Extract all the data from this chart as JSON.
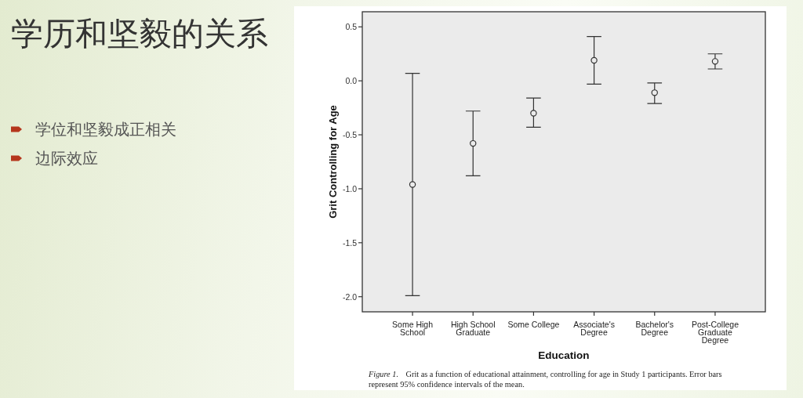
{
  "chart_data": {
    "type": "scatter",
    "title": "学历和坚毅的关系",
    "xlabel": "Education",
    "ylabel": "Grit Controlling for Age",
    "categories": [
      "Some High School",
      "High School Graduate",
      "Some College",
      "Associate's Degree",
      "Bachelor's Degree",
      "Post-College Graduate Degree"
    ],
    "values": [
      -0.96,
      -0.58,
      -0.3,
      0.19,
      -0.11,
      0.18
    ],
    "errors": [
      [
        -1.99,
        0.07
      ],
      [
        -0.88,
        -0.28
      ],
      [
        -0.43,
        -0.16
      ],
      [
        -0.03,
        0.41
      ],
      [
        -0.21,
        -0.02
      ],
      [
        0.11,
        0.25
      ]
    ],
    "color": "#333333",
    "marker": "circle",
    "ylim": [
      -2.14,
      0.64
    ],
    "yticks": [
      {
        "value": -2,
        "label": "-2.0"
      },
      -1.5,
      {
        "value": -1,
        "label": "-1.0"
      },
      -0.5,
      {
        "value": 0,
        "label": "0.0"
      },
      0.5
    ],
    "annotations": [
      "学位和坚毅成正相关",
      "边际效应",
      "*Figure 1.* Grit as a function of educational attainment, controlling for age in Study 1 participants. Error bars represent 95% confidence intervals of the mean."
    ]
  }
}
